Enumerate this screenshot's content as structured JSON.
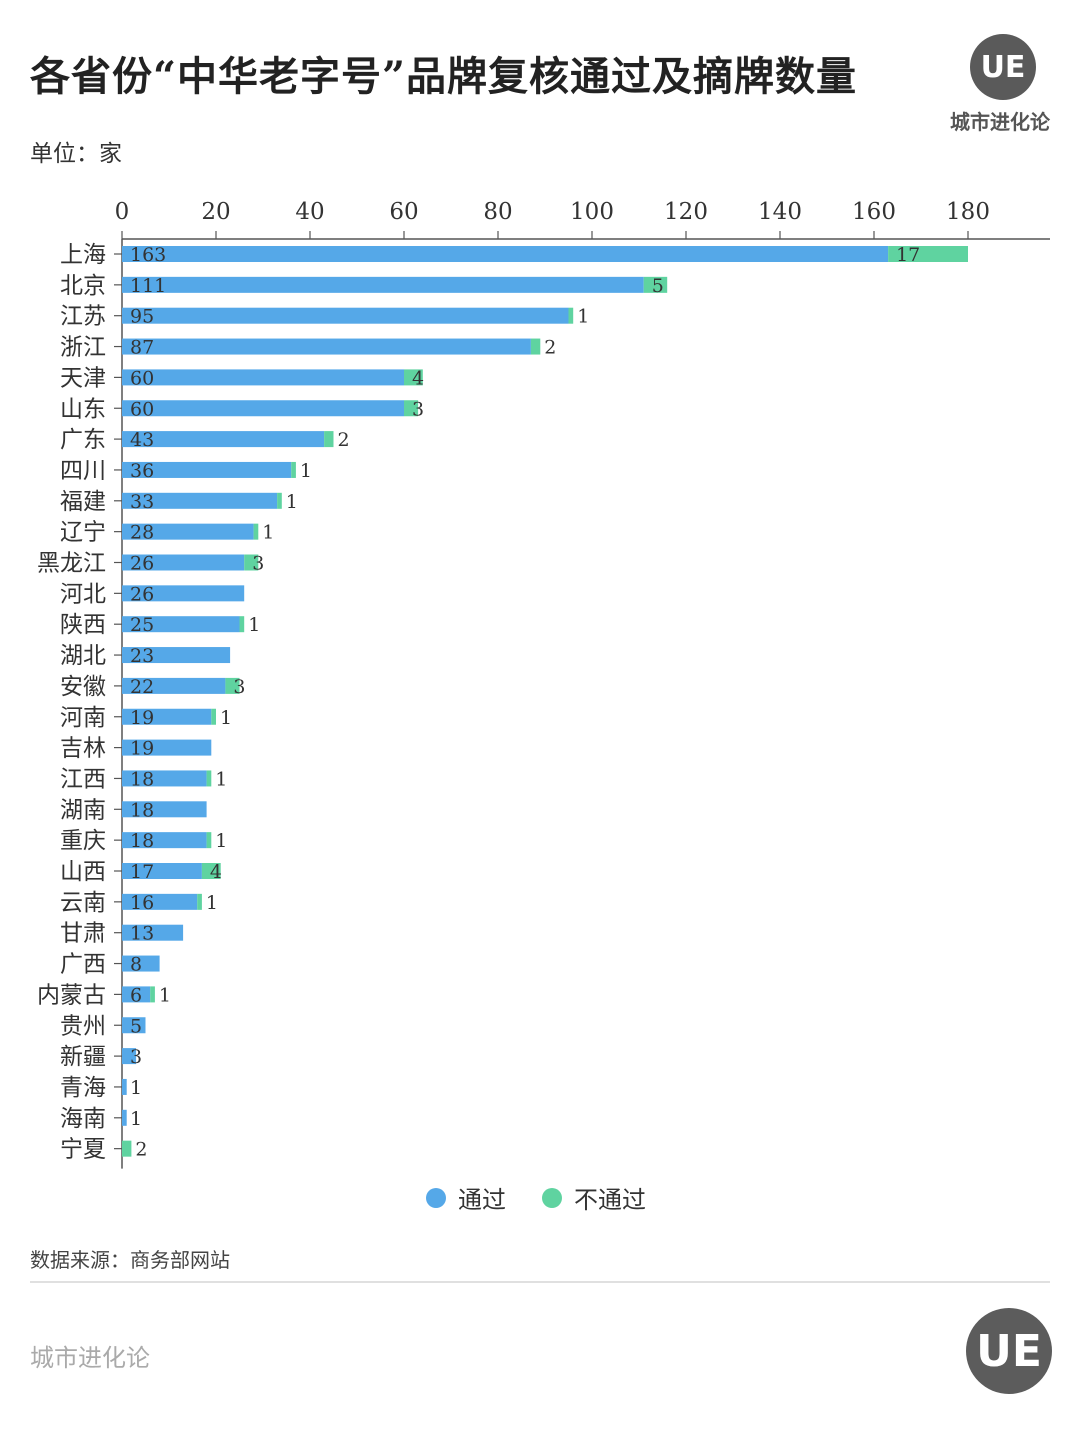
{
  "title": "各省份“中华老字号”品牌复核通过及摘牌数量",
  "unit_label": "单位：家",
  "logo": {
    "text": "UE",
    "brand": "城市进化论"
  },
  "legend": [
    {
      "label": "通过",
      "color": "#55a8e8"
    },
    {
      "label": "不通过",
      "color": "#5fd3a0"
    }
  ],
  "source": "数据来源：商务部网站",
  "footer": {
    "brand": "城市进化论",
    "logo_text": "UE"
  },
  "chart_data": {
    "type": "bar",
    "orientation": "horizontal",
    "stacked": true,
    "title": "各省份“中华老字号”品牌复核通过及摘牌数量",
    "xlabel": "",
    "ylabel": "",
    "xlim": [
      0,
      198
    ],
    "x_ticks": [
      0,
      20,
      40,
      60,
      80,
      100,
      120,
      140,
      160,
      180
    ],
    "axis_position": "top",
    "grid": false,
    "legend_position": "bottom",
    "categories": [
      "上海",
      "北京",
      "江苏",
      "浙江",
      "天津",
      "山东",
      "广东",
      "四川",
      "福建",
      "辽宁",
      "黑龙江",
      "河北",
      "陕西",
      "湖北",
      "安徽",
      "河南",
      "吉林",
      "江西",
      "湖南",
      "重庆",
      "山西",
      "云南",
      "甘肃",
      "广西",
      "内蒙古",
      "贵州",
      "新疆",
      "青海",
      "海南",
      "宁夏"
    ],
    "series": [
      {
        "name": "通过",
        "color": "#55a8e8",
        "values": [
          163,
          111,
          95,
          87,
          60,
          60,
          43,
          36,
          33,
          28,
          26,
          26,
          25,
          23,
          22,
          19,
          19,
          18,
          18,
          18,
          17,
          16,
          13,
          8,
          6,
          5,
          3,
          1,
          1,
          0
        ]
      },
      {
        "name": "不通过",
        "color": "#5fd3a0",
        "values": [
          17,
          5,
          1,
          2,
          4,
          3,
          2,
          1,
          1,
          1,
          3,
          0,
          1,
          0,
          3,
          1,
          0,
          1,
          0,
          1,
          4,
          1,
          0,
          0,
          1,
          0,
          0,
          0,
          0,
          2
        ]
      }
    ]
  }
}
